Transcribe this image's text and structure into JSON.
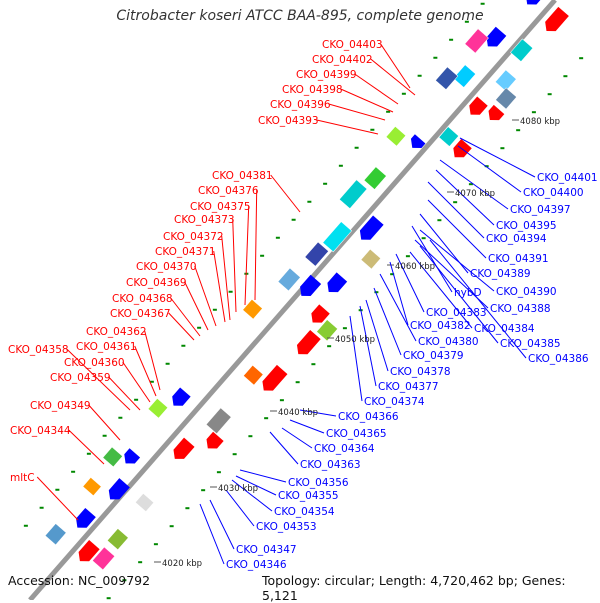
{
  "title": "Citrobacter koseri ATCC BAA-895, complete genome",
  "footer": {
    "accession": "Accession: NC_009792",
    "summary": "Topology: circular; Length: 4,720,462 bp; Genes: 5,121"
  },
  "colors": {
    "forward_gene": "#ff0000",
    "reverse_gene": "#0000ff",
    "backbone": "#999999",
    "tick": "#008800"
  },
  "kbp_ticks": [
    "4080 kbp",
    "4070 kbp",
    "4060 kbp",
    "4050 kbp",
    "4040 kbp",
    "4030 kbp",
    "4020 kbp"
  ],
  "left_labels": [
    "CKO_04403",
    "CKO_04402",
    "CKO_04399",
    "CKO_04398",
    "CKO_04396",
    "CKO_04393",
    "CKO_04381",
    "CKO_04376",
    "CKO_04375",
    "CKO_04373",
    "CKO_04372",
    "CKO_04371",
    "CKO_04370",
    "CKO_04369",
    "CKO_04368",
    "CKO_04367",
    "CKO_04362",
    "CKO_04361",
    "CKO_04358",
    "CKO_04360",
    "CKO_04359",
    "CKO_04349",
    "CKO_04344",
    "mltC"
  ],
  "right_labels": [
    "CKO_04401",
    "CKO_04400",
    "CKO_04397",
    "CKO_04395",
    "CKO_04394",
    "CKO_04391",
    "CKO_04389",
    "hybD",
    "CKO_04390",
    "CKO_04388",
    "CKO_04383",
    "CKO_04382",
    "CKO_04384",
    "CKO_04385",
    "CKO_04380",
    "CKO_04386",
    "CKO_04379",
    "CKO_04378",
    "CKO_04377",
    "CKO_04374",
    "CKO_04366",
    "CKO_04365",
    "CKO_04364",
    "CKO_04363",
    "CKO_04356",
    "CKO_04355",
    "CKO_04354",
    "CKO_04353",
    "CKO_04347",
    "CKO_04346"
  ]
}
